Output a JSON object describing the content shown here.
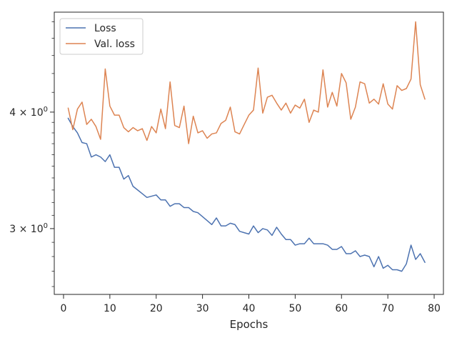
{
  "chart_data": {
    "type": "line",
    "xlabel": "Epochs",
    "ylabel": "",
    "yscale": "log",
    "xlim": [
      -2.0,
      82.0
    ],
    "ylim": [
      2.55,
      5.12
    ],
    "grid": false,
    "legend": {
      "placement": "top-left"
    },
    "x_ticks": [
      0,
      10,
      20,
      30,
      40,
      50,
      60,
      70,
      80
    ],
    "x_tick_labels": [
      "0",
      "10",
      "20",
      "30",
      "40",
      "50",
      "60",
      "70",
      "80"
    ],
    "y_ticks": [
      3,
      4
    ],
    "y_tick_base": [
      "3 × 10",
      "4 × 10"
    ],
    "y_tick_exp": [
      "0",
      "0"
    ],
    "x": [
      1,
      2,
      3,
      4,
      5,
      6,
      7,
      8,
      9,
      10,
      11,
      12,
      13,
      14,
      15,
      16,
      17,
      18,
      19,
      20,
      21,
      22,
      23,
      24,
      25,
      26,
      27,
      28,
      29,
      30,
      31,
      32,
      33,
      34,
      35,
      36,
      37,
      38,
      39,
      40,
      41,
      42,
      43,
      44,
      45,
      46,
      47,
      48,
      49,
      50,
      51,
      52,
      53,
      54,
      55,
      56,
      57,
      58,
      59,
      60,
      61,
      62,
      63,
      64,
      65,
      66,
      67,
      68,
      69,
      70,
      71,
      72,
      73,
      74,
      75,
      76,
      77,
      78
    ],
    "series": [
      {
        "name": "Loss",
        "color": "#4c72b0",
        "values": [
          3.94,
          3.86,
          3.8,
          3.71,
          3.7,
          3.58,
          3.6,
          3.58,
          3.54,
          3.6,
          3.49,
          3.49,
          3.39,
          3.42,
          3.33,
          3.3,
          3.27,
          3.24,
          3.25,
          3.26,
          3.22,
          3.22,
          3.17,
          3.19,
          3.19,
          3.16,
          3.16,
          3.13,
          3.12,
          3.09,
          3.06,
          3.03,
          3.08,
          3.02,
          3.02,
          3.04,
          3.03,
          2.98,
          2.97,
          2.96,
          3.02,
          2.97,
          3.0,
          2.99,
          2.95,
          3.01,
          2.96,
          2.92,
          2.92,
          2.88,
          2.89,
          2.89,
          2.93,
          2.89,
          2.89,
          2.89,
          2.88,
          2.85,
          2.85,
          2.87,
          2.82,
          2.82,
          2.84,
          2.8,
          2.81,
          2.8,
          2.73,
          2.8,
          2.72,
          2.74,
          2.71,
          2.71,
          2.7,
          2.75,
          2.88,
          2.78,
          2.82,
          2.76
        ]
      },
      {
        "name": "Val. loss",
        "color": "#dd8452",
        "values": [
          4.04,
          3.83,
          4.03,
          4.1,
          3.88,
          3.93,
          3.86,
          3.74,
          4.45,
          4.06,
          3.97,
          3.97,
          3.85,
          3.81,
          3.85,
          3.82,
          3.84,
          3.73,
          3.86,
          3.8,
          4.03,
          3.84,
          4.31,
          3.87,
          3.85,
          4.06,
          3.7,
          3.96,
          3.8,
          3.82,
          3.75,
          3.79,
          3.8,
          3.89,
          3.92,
          4.05,
          3.81,
          3.79,
          3.88,
          3.97,
          4.02,
          4.46,
          3.99,
          4.15,
          4.17,
          4.09,
          4.02,
          4.09,
          3.99,
          4.07,
          4.04,
          4.13,
          3.9,
          4.02,
          4.0,
          4.44,
          4.05,
          4.2,
          4.06,
          4.4,
          4.3,
          3.93,
          4.05,
          4.31,
          4.29,
          4.09,
          4.13,
          4.08,
          4.29,
          4.08,
          4.03,
          4.27,
          4.22,
          4.24,
          4.34,
          5.0,
          4.28,
          4.13
        ]
      }
    ]
  }
}
